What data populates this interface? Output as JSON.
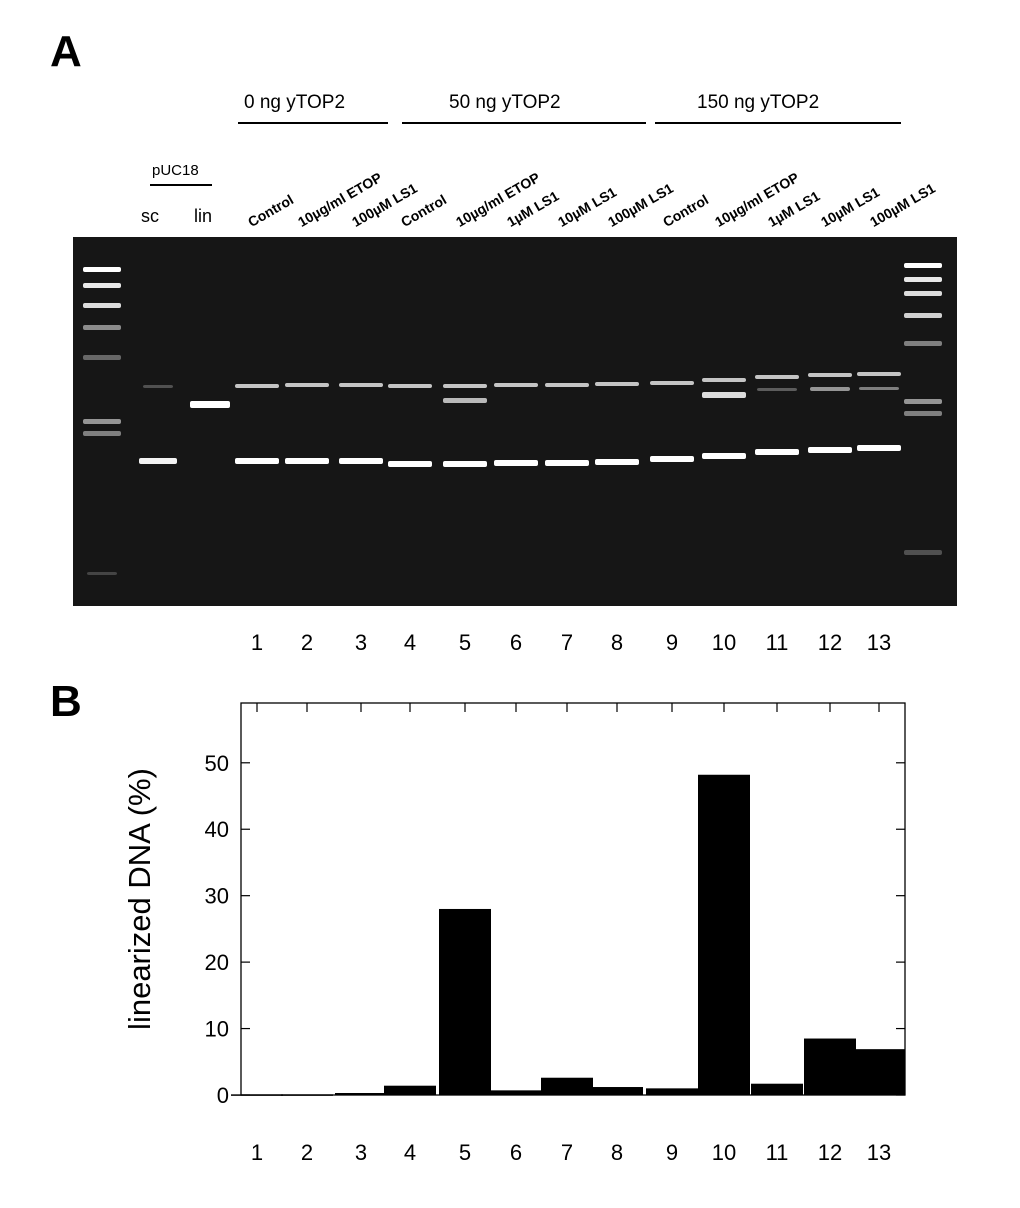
{
  "panel_a": {
    "letter": "A",
    "groups": [
      {
        "label": "0 ng yTOP2"
      },
      {
        "label": "50 ng yTOP2"
      },
      {
        "label": "150 ng yTOP2"
      }
    ],
    "marker_group": "pUC18",
    "marker_lanes": [
      "sc",
      "lin"
    ],
    "conditions": [
      "Control",
      "10µg/ml ETOP",
      "100µM LS1",
      "Control",
      "10µg/ml ETOP",
      "1µM LS1",
      "10µM LS1",
      "100µM LS1",
      "Control",
      "10µg/ml ETOP",
      "1µM LS1",
      "10µM LS1",
      "100µM LS1"
    ],
    "lane_numbers": [
      "1",
      "2",
      "3",
      "4",
      "5",
      "6",
      "7",
      "8",
      "9",
      "10",
      "11",
      "12",
      "13"
    ]
  },
  "panel_b": {
    "letter": "B"
  },
  "chart_data": {
    "type": "bar",
    "categories": [
      "1",
      "2",
      "3",
      "4",
      "5",
      "6",
      "7",
      "8",
      "9",
      "10",
      "11",
      "12",
      "13"
    ],
    "values": [
      0.1,
      0.1,
      0.3,
      1.4,
      28.0,
      0.7,
      2.6,
      1.2,
      1.0,
      48.2,
      1.7,
      8.5,
      6.9
    ],
    "title": "",
    "xlabel": "",
    "ylabel": "linearized DNA (%)",
    "ylim": [
      0,
      59
    ],
    "yticks": [
      0,
      10,
      20,
      30,
      40,
      50
    ],
    "bar_color": "#000000",
    "grid": false
  }
}
